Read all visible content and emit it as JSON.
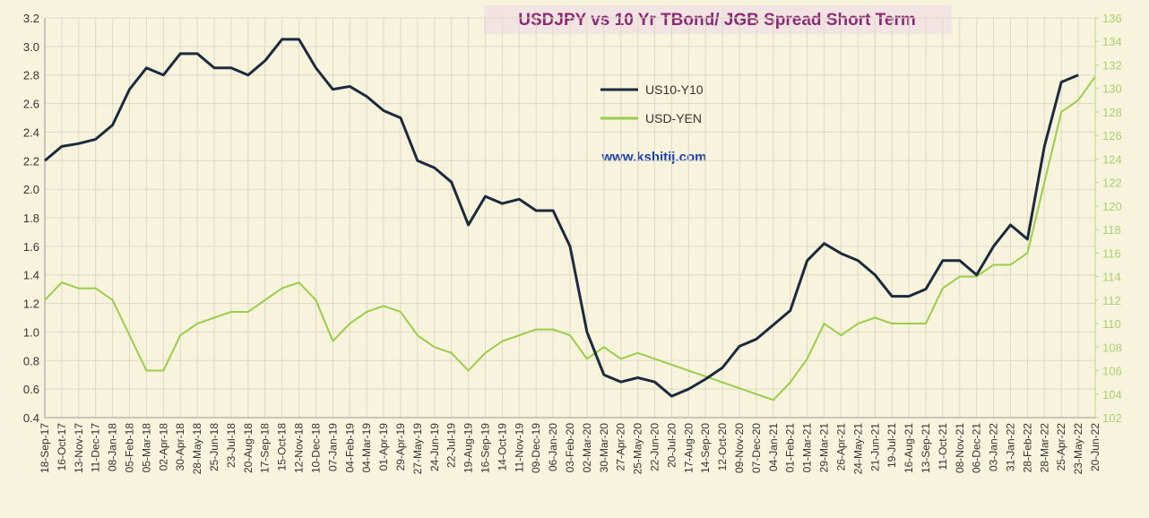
{
  "chart_data": {
    "type": "line",
    "title": "USDJPY vs 10 Yr TBond/ JGB Spread Short Term",
    "annotation": "www.kshitij.com",
    "categories": [
      "18-Sep-17",
      "16-Oct-17",
      "13-Nov-17",
      "11-Dec-17",
      "08-Jan-18",
      "05-Feb-18",
      "05-Mar-18",
      "02-Apr-18",
      "30-Apr-18",
      "28-May-18",
      "25-Jun-18",
      "23-Jul-18",
      "20-Aug-18",
      "17-Sep-18",
      "15-Oct-18",
      "12-Nov-18",
      "10-Dec-18",
      "07-Jan-19",
      "04-Feb-19",
      "04-Mar-19",
      "01-Apr-19",
      "29-Apr-19",
      "27-May-19",
      "24-Jun-19",
      "22-Jul-19",
      "19-Aug-19",
      "16-Sep-19",
      "14-Oct-19",
      "11-Nov-19",
      "09-Dec-19",
      "06-Jan-20",
      "03-Feb-20",
      "02-Mar-20",
      "30-Mar-20",
      "27-Apr-20",
      "25-May-20",
      "22-Jun-20",
      "20-Jul-20",
      "17-Aug-20",
      "14-Sep-20",
      "12-Oct-20",
      "09-Nov-20",
      "07-Dec-20",
      "04-Jan-21",
      "01-Feb-21",
      "01-Mar-21",
      "29-Mar-21",
      "26-Apr-21",
      "24-May-21",
      "21-Jun-21",
      "19-Jul-21",
      "16-Aug-21",
      "13-Sep-21",
      "11-Oct-21",
      "08-Nov-21",
      "06-Dec-21",
      "03-Jan-22",
      "31-Jan-22",
      "28-Feb-22",
      "28-Mar-22",
      "25-Apr-22",
      "23-May-22",
      "20-Jun-22"
    ],
    "series": [
      {
        "name": "US10-Y10",
        "color": "#1c2a3d",
        "values": [
          2.2,
          2.3,
          2.32,
          2.35,
          2.45,
          2.7,
          2.85,
          2.8,
          2.95,
          2.95,
          2.85,
          2.85,
          2.8,
          2.9,
          3.05,
          3.05,
          2.85,
          2.7,
          2.72,
          2.65,
          2.55,
          2.5,
          2.2,
          2.15,
          2.05,
          1.75,
          1.95,
          1.9,
          1.93,
          1.85,
          1.85,
          1.6,
          1.0,
          0.7,
          0.65,
          0.68,
          0.65,
          0.55,
          0.6,
          0.67,
          0.75,
          0.9,
          0.95,
          1.05,
          1.15,
          1.5,
          1.62,
          1.55,
          1.5,
          1.4,
          1.25,
          1.25,
          1.3,
          1.5,
          1.5,
          1.4,
          1.6,
          1.75,
          1.65,
          2.3,
          2.75,
          2.8,
          null
        ]
      },
      {
        "name": "USD-YEN",
        "color": "#9acd4a",
        "axis": "y2",
        "values": [
          112,
          113.5,
          113,
          113,
          112,
          109,
          106,
          106,
          109,
          110,
          110.5,
          111,
          111,
          112,
          113,
          113.5,
          112,
          108.5,
          110,
          111,
          111.5,
          111,
          109,
          108,
          107.5,
          106,
          107.5,
          108.5,
          109,
          109.5,
          109.5,
          109,
          107,
          108,
          107,
          107.5,
          107,
          106.5,
          106,
          105.5,
          105,
          104.5,
          104,
          103.5,
          105,
          107,
          110,
          109,
          110,
          110.5,
          110,
          110,
          110,
          113,
          114,
          114,
          115,
          115,
          116,
          122,
          128,
          129,
          131
        ]
      }
    ],
    "ylim": [
      0.4,
      3.2
    ],
    "yticks": [
      0.4,
      0.6,
      0.8,
      {
        "value": 1.0,
        "label": "1.0"
      },
      1.2,
      1.4,
      1.6,
      1.8,
      {
        "value": 2.0,
        "label": "2.0"
      },
      2.2,
      2.4,
      2.6,
      2.8,
      {
        "value": 3.0,
        "label": "3.0"
      },
      3.2
    ],
    "y2lim": [
      102,
      136
    ],
    "y2ticks": [
      102,
      104,
      106,
      108,
      110,
      112,
      114,
      116,
      118,
      120,
      122,
      124,
      126,
      128,
      130,
      132,
      134,
      136
    ],
    "grid": true
  }
}
